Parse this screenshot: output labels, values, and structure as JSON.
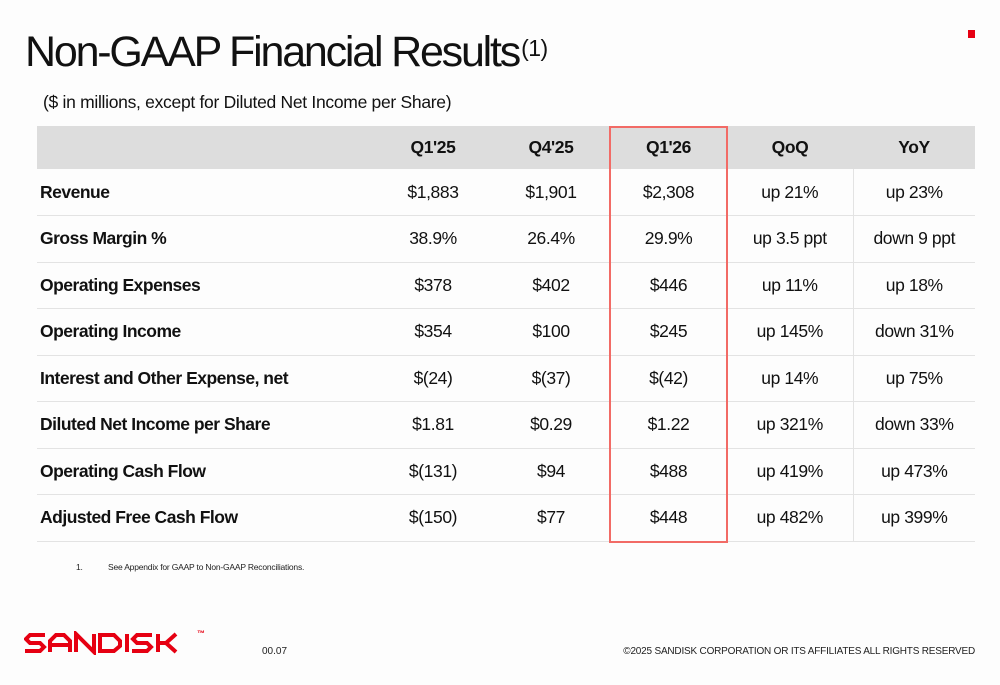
{
  "slide": {
    "title": "Non-GAAP Financial Results",
    "title_superscript": "(1)",
    "subtitle": "($ in millions, except for Diluted Net Income per Share)",
    "highlighted_column": "Q1'26"
  },
  "table": {
    "headers": [
      "",
      "Q1'25",
      "Q4'25",
      "Q1'26",
      "QoQ",
      "YoY"
    ],
    "rows": [
      {
        "label": "Revenue",
        "q125": "$1,883",
        "q425": "$1,901",
        "q126": "$2,308",
        "qoq": "up 21%",
        "yoy": "up 23%"
      },
      {
        "label": "Gross Margin %",
        "q125": "38.9%",
        "q425": "26.4%",
        "q126": "29.9%",
        "qoq": "up 3.5 ppt",
        "yoy": "down 9 ppt"
      },
      {
        "label": "Operating Expenses",
        "q125": "$378",
        "q425": "$402",
        "q126": "$446",
        "qoq": "up 11%",
        "yoy": "up 18%"
      },
      {
        "label": "Operating Income",
        "q125": "$354",
        "q425": "$100",
        "q126": "$245",
        "qoq": "up 145%",
        "yoy": "down 31%"
      },
      {
        "label": "Interest and Other Expense, net",
        "q125": "$(24)",
        "q425": "$(37)",
        "q126": "$(42)",
        "qoq": "up 14%",
        "yoy": "up 75%"
      },
      {
        "label": "Diluted Net Income per Share",
        "q125": "$1.81",
        "q425": "$0.29",
        "q126": "$1.22",
        "qoq": "up 321%",
        "yoy": "down 33%"
      },
      {
        "label": "Operating Cash Flow",
        "q125": "$(131)",
        "q425": "$94",
        "q126": "$488",
        "qoq": "up 419%",
        "yoy": "up 473%"
      },
      {
        "label": "Adjusted Free Cash Flow",
        "q125": "$(150)",
        "q425": "$77",
        "q126": "$448",
        "qoq": "up 482%",
        "yoy": "up 399%"
      }
    ]
  },
  "footnote": {
    "number": "1.",
    "text": "See Appendix for GAAP to Non-GAAP Reconciliations."
  },
  "footer": {
    "logo_text": "SANDISK",
    "trademark": "™",
    "page_number": "00.07",
    "copyright": "©2025 SANDISK CORPORATION OR ITS AFFILIATES ALL RIGHTS RESERVED"
  },
  "colors": {
    "brand_red": "#e60012",
    "highlight_border": "#f26b66",
    "header_bg": "#dddddd"
  }
}
